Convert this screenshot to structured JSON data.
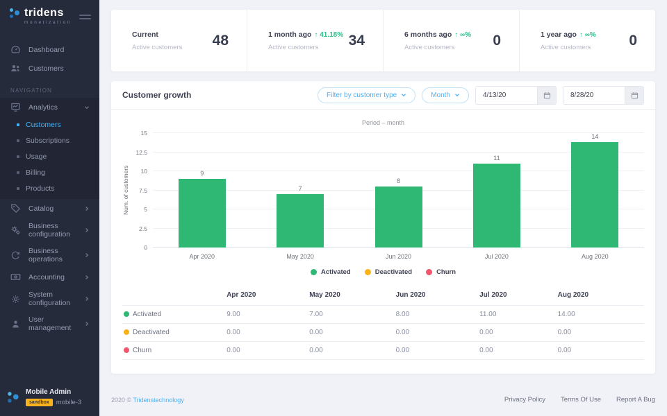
{
  "brand": {
    "name": "tridens",
    "tagline": "monetization"
  },
  "colors": {
    "accent_green": "#2eb873",
    "accent_yellow": "#fcb116",
    "accent_red": "#f1556b",
    "accent_blue": "#49b2f8",
    "sidebar_bg": "#262b3c",
    "badge_yellow": "#fbb31c"
  },
  "sidebar": {
    "nav_section_label": "NAVIGATION",
    "items": [
      {
        "label": "Dashboard"
      },
      {
        "label": "Customers"
      },
      {
        "label": "Analytics"
      },
      {
        "label": "Catalog"
      },
      {
        "label": "Business configuration"
      },
      {
        "label": "Business operations"
      },
      {
        "label": "Accounting"
      },
      {
        "label": "System configuration"
      },
      {
        "label": "User management"
      }
    ],
    "analytics_subitems": [
      {
        "label": "Customers",
        "active": true
      },
      {
        "label": "Subscriptions"
      },
      {
        "label": "Usage"
      },
      {
        "label": "Billing"
      },
      {
        "label": "Products"
      }
    ],
    "user": {
      "name": "Mobile Admin",
      "badge": "sandbox",
      "environment": "mobile-3"
    }
  },
  "stats": [
    {
      "title": "Current",
      "delta": "",
      "subtitle": "Active customers",
      "value": "48"
    },
    {
      "title": "1 month ago",
      "delta": "↑ 41.18%",
      "subtitle": "Active customers",
      "value": "34"
    },
    {
      "title": "6 months ago",
      "delta": "↑ ∞%",
      "subtitle": "Active customers",
      "value": "0"
    },
    {
      "title": "1 year ago",
      "delta": "↑ ∞%",
      "subtitle": "Active customers",
      "value": "0"
    }
  ],
  "growth_card": {
    "title": "Customer growth",
    "filters": {
      "customer_type_label": "Filter by customer type",
      "period_label": "Month",
      "date_from": "4/13/20",
      "date_to": "8/28/20"
    }
  },
  "chart_data": {
    "type": "bar",
    "title": "Period – month",
    "ylabel": "Num. of customers",
    "categories": [
      "Apr 2020",
      "May 2020",
      "Jun 2020",
      "Jul 2020",
      "Aug 2020"
    ],
    "series": [
      {
        "name": "Activated",
        "color": "#2eb873",
        "values": [
          9,
          7,
          8,
          11,
          14
        ]
      },
      {
        "name": "Deactivated",
        "color": "#fcb116",
        "values": [
          0,
          0,
          0,
          0,
          0
        ]
      },
      {
        "name": "Churn",
        "color": "#f1556b",
        "values": [
          0,
          0,
          0,
          0,
          0
        ]
      }
    ],
    "ylim": [
      0,
      15
    ],
    "yticks": [
      0,
      2.5,
      5,
      7.5,
      10,
      12.5,
      15
    ],
    "grid": true,
    "legend_position": "bottom",
    "table_value_decimals": 2
  },
  "footer": {
    "copyright_prefix": "2020 ©",
    "copyright_link": "Tridenstechnology",
    "links": [
      "Privacy Policy",
      "Terms Of Use",
      "Report A Bug"
    ]
  }
}
